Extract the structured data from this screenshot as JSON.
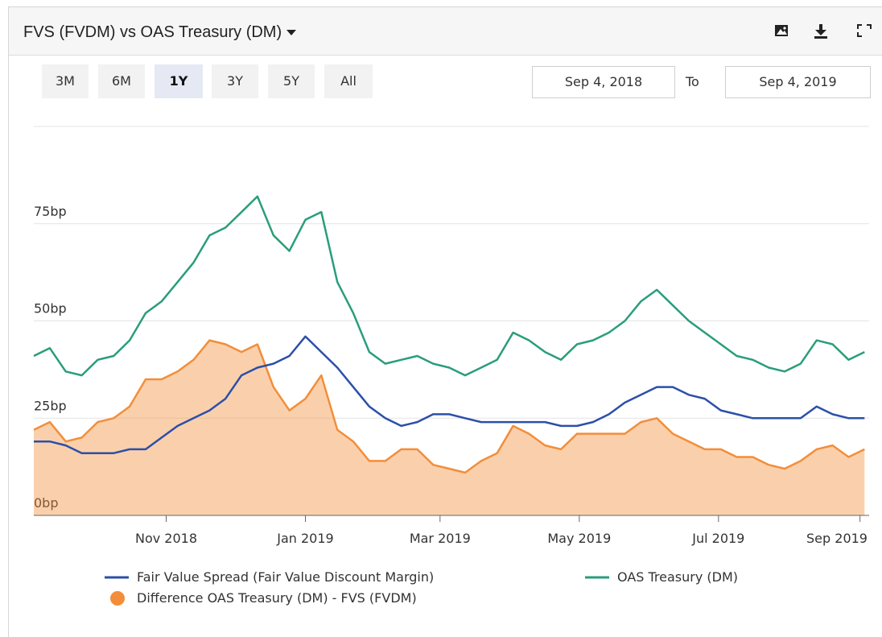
{
  "header": {
    "title": "FVS (FVDM) vs OAS Treasury (DM)"
  },
  "range_buttons": [
    "3M",
    "6M",
    "1Y",
    "3Y",
    "5Y",
    "All"
  ],
  "active_range": "1Y",
  "date_from": "Sep 4, 2018",
  "date_to_label": "To",
  "date_to": "Sep 4, 2019",
  "chart_data": {
    "type": "line",
    "x": [
      "2018-09-04",
      "2018-09-11",
      "2018-09-18",
      "2018-09-25",
      "2018-10-02",
      "2018-10-09",
      "2018-10-16",
      "2018-10-23",
      "2018-10-30",
      "2018-11-06",
      "2018-11-13",
      "2018-11-20",
      "2018-11-27",
      "2018-12-04",
      "2018-12-11",
      "2018-12-18",
      "2018-12-25",
      "2019-01-01",
      "2019-01-08",
      "2019-01-15",
      "2019-01-22",
      "2019-01-29",
      "2019-02-05",
      "2019-02-12",
      "2019-02-19",
      "2019-02-26",
      "2019-03-05",
      "2019-03-12",
      "2019-03-19",
      "2019-03-26",
      "2019-04-02",
      "2019-04-09",
      "2019-04-16",
      "2019-04-23",
      "2019-04-30",
      "2019-05-07",
      "2019-05-14",
      "2019-05-21",
      "2019-05-28",
      "2019-06-04",
      "2019-06-11",
      "2019-06-18",
      "2019-06-25",
      "2019-07-02",
      "2019-07-09",
      "2019-07-16",
      "2019-07-23",
      "2019-07-30",
      "2019-08-06",
      "2019-08-13",
      "2019-08-20",
      "2019-08-27",
      "2019-09-03"
    ],
    "xlim": [
      "2018-09-04",
      "2019-09-05"
    ],
    "xticks": [
      {
        "value": "2018-11-01",
        "label": "Nov 2018"
      },
      {
        "value": "2019-01-01",
        "label": "Jan 2019"
      },
      {
        "value": "2019-03-01",
        "label": "Mar 2019"
      },
      {
        "value": "2019-05-01",
        "label": "May 2019"
      },
      {
        "value": "2019-07-01",
        "label": "Jul 2019"
      },
      {
        "value": "2019-09-01",
        "label": "Sep 2019"
      }
    ],
    "ylim": [
      0,
      100
    ],
    "yticks": [
      {
        "value": 0,
        "label": "0bp"
      },
      {
        "value": 25,
        "label": "25bp"
      },
      {
        "value": 50,
        "label": "50bp"
      },
      {
        "value": 75,
        "label": "75bp"
      }
    ],
    "grid": true,
    "series": [
      {
        "name": "Fair Value Spread (Fair Value Discount Margin)",
        "color": "#2c4fa8",
        "style": "line",
        "values": [
          19,
          19,
          18,
          16,
          16,
          16,
          17,
          17,
          20,
          23,
          25,
          27,
          30,
          36,
          38,
          39,
          41,
          46,
          42,
          38,
          33,
          28,
          25,
          23,
          24,
          26,
          26,
          25,
          24,
          24,
          24,
          24,
          24,
          23,
          23,
          24,
          26,
          29,
          31,
          33,
          33,
          31,
          30,
          27,
          26,
          25,
          25,
          25,
          25,
          28,
          26,
          25,
          25
        ]
      },
      {
        "name": "OAS Treasury (DM)",
        "color": "#2a9d7c",
        "style": "line",
        "values": [
          41,
          43,
          37,
          36,
          40,
          41,
          45,
          52,
          55,
          60,
          65,
          72,
          74,
          78,
          82,
          72,
          68,
          76,
          78,
          60,
          52,
          42,
          39,
          40,
          41,
          39,
          38,
          36,
          38,
          40,
          47,
          45,
          42,
          40,
          44,
          45,
          47,
          50,
          55,
          58,
          54,
          50,
          47,
          44,
          41,
          40,
          38,
          37,
          39,
          45,
          44,
          40,
          42
        ]
      },
      {
        "name": "Difference OAS Treasury (DM) - FVS (FVDM)",
        "color": "#f28e3a",
        "style": "area",
        "values": [
          22,
          24,
          19,
          20,
          24,
          25,
          28,
          35,
          35,
          37,
          40,
          45,
          44,
          42,
          44,
          33,
          27,
          30,
          36,
          22,
          19,
          14,
          14,
          17,
          17,
          13,
          12,
          11,
          14,
          16,
          23,
          21,
          18,
          17,
          21,
          21,
          21,
          21,
          24,
          25,
          21,
          19,
          17,
          17,
          15,
          15,
          13,
          12,
          14,
          17,
          18,
          15,
          17
        ]
      }
    ]
  }
}
